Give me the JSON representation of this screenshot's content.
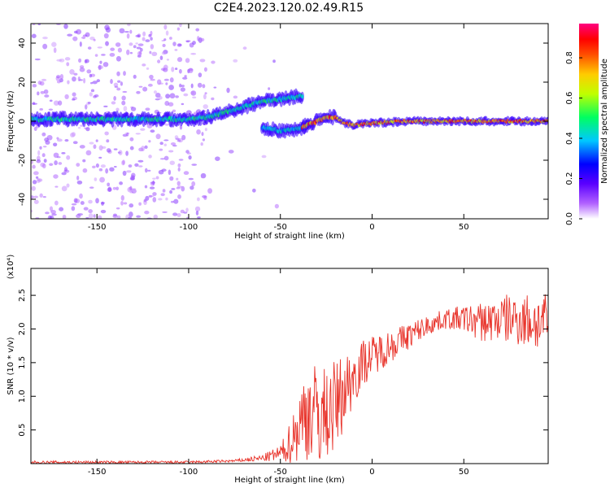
{
  "title": "C2E4.2023.120.02.49.R15",
  "chart_data": [
    {
      "type": "heatmap",
      "xlabel": "Height of straight line (km)",
      "ylabel": "Frequency (Hz)",
      "xlim": [
        -186,
        96
      ],
      "ylim": [
        -50,
        50
      ],
      "xticks": [
        -150,
        -100,
        -50,
        0,
        50
      ],
      "yticks": [
        -40,
        -20,
        0,
        20,
        40
      ],
      "colorbar": {
        "label": "Normalized spectral amplitude",
        "range": [
          0.0,
          0.97
        ],
        "ticks": [
          "0.0",
          "0.2",
          "0.4",
          "0.6",
          "0.8"
        ],
        "colors": [
          "#ffffff",
          "#7a00ff",
          "#0000ff",
          "#00ffff",
          "#00ff00",
          "#ffff00",
          "#ff8000",
          "#ff0000",
          "#ff0080"
        ]
      },
      "ridges": [
        {
          "x": [
            -186,
            -150,
            -120,
            -100,
            -90,
            -75,
            -60,
            -45,
            -38
          ],
          "y": [
            1,
            1,
            1,
            1,
            2,
            6,
            10,
            12,
            13
          ],
          "amplitude": 0.5
        },
        {
          "x": [
            -60,
            -50,
            -40,
            -35
          ],
          "y": [
            -3,
            -5,
            -4,
            -2
          ],
          "amplitude": 0.45
        },
        {
          "x": [
            -38,
            -30,
            -25,
            -20,
            -15,
            -10,
            0,
            20,
            50,
            80,
            96
          ],
          "y": [
            -3,
            0,
            2,
            2,
            -1,
            -2,
            -1,
            0,
            0,
            0,
            0
          ],
          "amplitude": 0.85
        }
      ]
    },
    {
      "type": "line",
      "xlabel": "Height of straight line (km)",
      "ylabel": "SNR (10 * v/v)",
      "multiplier": "(x10⁴)",
      "xlim": [
        -186,
        96
      ],
      "ylim": [
        0,
        2.9
      ],
      "xticks": [
        -150,
        -100,
        -50,
        0,
        50
      ],
      "yticks": [
        0.5,
        1.0,
        1.5,
        2.0,
        2.5
      ],
      "series": [
        {
          "color": "#e8332a",
          "envelope": {
            "x": [
              -186,
              -100,
              -75,
              -60,
              -50,
              -45,
              -40,
              -35,
              -30,
              -25,
              -20,
              -15,
              -10,
              -5,
              0,
              10,
              20,
              30,
              40,
              50,
              60,
              70,
              80,
              90,
              96
            ],
            "mean": [
              0.02,
              0.02,
              0.04,
              0.08,
              0.15,
              0.3,
              0.55,
              0.8,
              0.7,
              0.75,
              0.85,
              1.1,
              1.3,
              1.5,
              1.6,
              1.75,
              1.9,
              2.05,
              2.15,
              2.15,
              2.1,
              2.15,
              2.15,
              2.1,
              2.1
            ],
            "amp": [
              0.02,
              0.02,
              0.02,
              0.05,
              0.12,
              0.3,
              0.55,
              0.75,
              0.8,
              0.7,
              0.7,
              0.55,
              0.45,
              0.35,
              0.3,
              0.25,
              0.2,
              0.15,
              0.15,
              0.2,
              0.3,
              0.35,
              0.4,
              0.45,
              0.4
            ]
          }
        }
      ]
    }
  ]
}
